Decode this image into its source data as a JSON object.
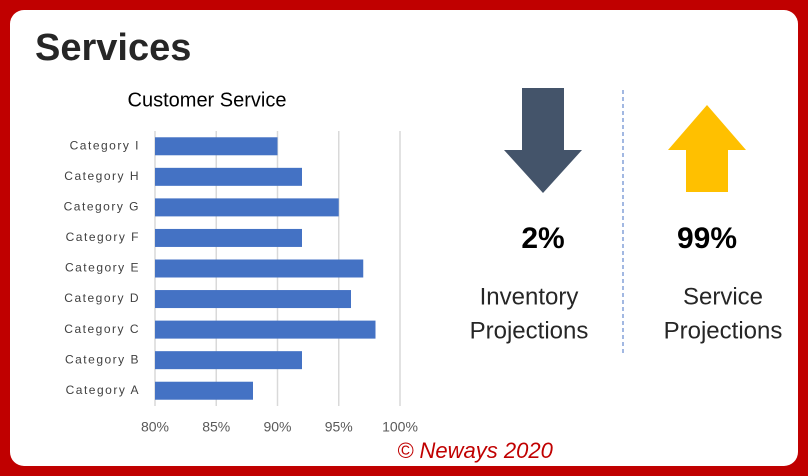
{
  "header": {
    "title": "Services"
  },
  "chart_data": {
    "type": "barh",
    "title": "Customer Service",
    "categories": [
      "Category A",
      "Category B",
      "Category C",
      "Category D",
      "Category E",
      "Category F",
      "Category G",
      "Category H",
      "Category I"
    ],
    "values": [
      88,
      92,
      98,
      96,
      97,
      92,
      95,
      92,
      90
    ],
    "color": "#4472c4",
    "xlim": [
      80,
      100
    ],
    "xticks": [
      {
        "value": 80,
        "label": "80%"
      },
      {
        "value": 85,
        "label": "85%"
      },
      {
        "value": 90,
        "label": "90%"
      },
      {
        "value": 95,
        "label": "95%"
      },
      {
        "value": 100,
        "label": "100%"
      }
    ],
    "grid": true
  },
  "kpis": [
    {
      "value": "2%",
      "label": [
        "Inventory",
        "Projections"
      ],
      "direction": "down",
      "color": "#44546a"
    },
    {
      "value": "99%",
      "label": [
        "Service",
        "Projections"
      ],
      "direction": "up",
      "color": "#ffc000"
    }
  ],
  "footer": "© Neways 2020"
}
